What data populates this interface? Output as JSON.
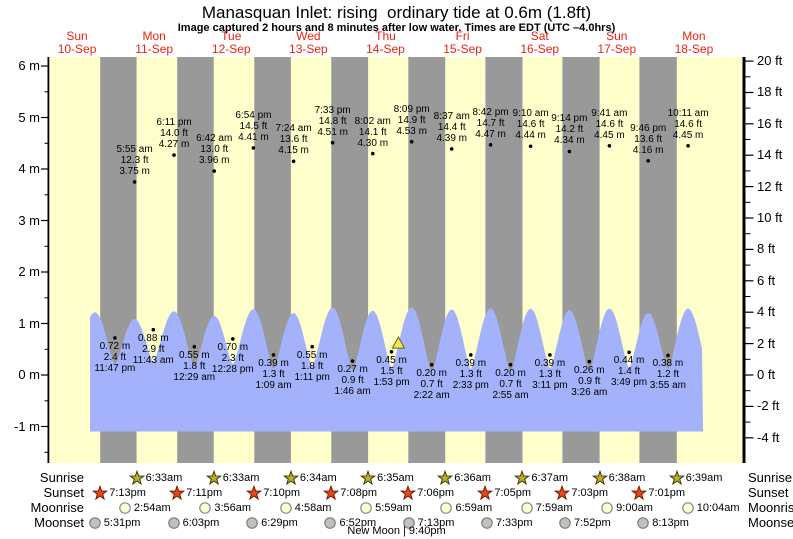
{
  "header": {
    "title": "Manasquan Inlet: rising  ordinary tide at 0.6m (1.8ft)",
    "subtitle": "Image captured 2 hours and 8 minutes after low water. Times are EDT (UTC –4.0hrs)"
  },
  "colors": {
    "day_band": "#ffffcc",
    "night_band": "#999999",
    "tide_fill": "#a3b2fb",
    "date_red": "#ee2211",
    "axis_black": "#000000",
    "sunrise_star": "#bfae2e",
    "sunrise_star_edge": "#3d3a00",
    "sunset_star": "#e2491b",
    "sunset_star_edge": "#7a1600",
    "moonrise_fill": "#ffffd2",
    "moonrise_edge": "#8a8a8a",
    "moonset_fill": "#c2c2ba",
    "moonset_edge": "#7d7d7d",
    "marker_yellow": "#ecec5a",
    "marker_edge": "#666600"
  },
  "chart_data": {
    "type": "area",
    "title": "Manasquan Inlet: rising  ordinary tide at 0.6m (1.8ft)",
    "days": [
      {
        "dow": "Sun",
        "date": "10-Sep"
      },
      {
        "dow": "Mon",
        "date": "11-Sep"
      },
      {
        "dow": "Tue",
        "date": "12-Sep"
      },
      {
        "dow": "Wed",
        "date": "13-Sep"
      },
      {
        "dow": "Thu",
        "date": "14-Sep"
      },
      {
        "dow": "Fri",
        "date": "15-Sep"
      },
      {
        "dow": "Sat",
        "date": "16-Sep"
      },
      {
        "dow": "Sun",
        "date": "17-Sep"
      },
      {
        "dow": "Mon",
        "date": "18-Sep"
      }
    ],
    "y_left_ticks": [
      {
        "label": "6 m",
        "value": 6
      },
      {
        "label": "5 m",
        "value": 5
      },
      {
        "label": "4 m",
        "value": 4
      },
      {
        "label": "3 m",
        "value": 3
      },
      {
        "label": "2 m",
        "value": 2
      },
      {
        "label": "1 m",
        "value": 1
      },
      {
        "label": "0 m",
        "value": 0
      },
      {
        "label": "-1 m",
        "value": -1
      }
    ],
    "y_right_ticks": [
      {
        "label": "20 ft",
        "value": 20
      },
      {
        "label": "18 ft",
        "value": 18
      },
      {
        "label": "16 ft",
        "value": 16
      },
      {
        "label": "14 ft",
        "value": 14
      },
      {
        "label": "12 ft",
        "value": 12
      },
      {
        "label": "10 ft",
        "value": 10
      },
      {
        "label": "8 ft",
        "value": 8
      },
      {
        "label": "6 ft",
        "value": 6
      },
      {
        "label": "4 ft",
        "value": 4
      },
      {
        "label": "2 ft",
        "value": 2
      },
      {
        "label": "0 ft",
        "value": 0
      },
      {
        "label": "-2 ft",
        "value": -2
      },
      {
        "label": "-4 ft",
        "value": -4
      }
    ],
    "high_tides": [
      {
        "day": 1,
        "time": "5:55 am",
        "ft": "12.3 ft",
        "m": "3.75 m"
      },
      {
        "day": 1,
        "time": "6:11 pm",
        "ft": "14.0 ft",
        "m": "4.27 m"
      },
      {
        "day": 2,
        "time": "6:42 am",
        "ft": "13.0 ft",
        "m": "3.96 m"
      },
      {
        "day": 2,
        "time": "6:54 pm",
        "ft": "14.5 ft",
        "m": "4.41 m"
      },
      {
        "day": 3,
        "time": "7:24 am",
        "ft": "13.6 ft",
        "m": "4.15 m"
      },
      {
        "day": 3,
        "time": "7:33 pm",
        "ft": "14.8 ft",
        "m": "4.51 m"
      },
      {
        "day": 4,
        "time": "8:02 am",
        "ft": "14.1 ft",
        "m": "4.30 m"
      },
      {
        "day": 4,
        "time": "8:09 pm",
        "ft": "14.9 ft",
        "m": "4.53 m"
      },
      {
        "day": 5,
        "time": "8:37 am",
        "ft": "14.4 ft",
        "m": "4.39 m"
      },
      {
        "day": 5,
        "time": "8:42 pm",
        "ft": "14.7 ft",
        "m": "4.47 m"
      },
      {
        "day": 6,
        "time": "9:10 am",
        "ft": "14.6 ft",
        "m": "4.44 m"
      },
      {
        "day": 6,
        "time": "9:14 pm",
        "ft": "14.2 ft",
        "m": "4.34 m"
      },
      {
        "day": 7,
        "time": "9:41 am",
        "ft": "14.6 ft",
        "m": "4.45 m"
      },
      {
        "day": 7,
        "time": "9:46 pm",
        "ft": "13.6 ft",
        "m": "4.16 m"
      },
      {
        "day": 8,
        "time": "10:11 am",
        "ft": "14.6 ft",
        "m": "4.45 m"
      }
    ],
    "low_tides": [
      {
        "day": 0,
        "time": "11:47 pm",
        "ft": "2.4 ft",
        "m": "0.72 m"
      },
      {
        "day": 1,
        "time": "11:43 am",
        "ft": "2.9 ft",
        "m": "0.88 m"
      },
      {
        "day": 2,
        "time": "12:29 am",
        "ft": "1.8 ft",
        "m": "0.55 m"
      },
      {
        "day": 2,
        "time": "12:28 pm",
        "ft": "2.3 ft",
        "m": "0.70 m"
      },
      {
        "day": 3,
        "time": "1:09 am",
        "ft": "1.3 ft",
        "m": "0.39 m"
      },
      {
        "day": 3,
        "time": "1:11 pm",
        "ft": "1.8 ft",
        "m": "0.55 m"
      },
      {
        "day": 4,
        "time": "1:46 am",
        "ft": "0.9 ft",
        "m": "0.27 m"
      },
      {
        "day": 4,
        "time": "1:53 pm",
        "ft": "1.5 ft",
        "m": "0.45 m"
      },
      {
        "day": 5,
        "time": "2:22 am",
        "ft": "0.7 ft",
        "m": "0.20 m"
      },
      {
        "day": 5,
        "time": "2:33 pm",
        "ft": "1.3 ft",
        "m": "0.39 m"
      },
      {
        "day": 6,
        "time": "2:55 am",
        "ft": "0.7 ft",
        "m": "0.20 m"
      },
      {
        "day": 6,
        "time": "3:11 pm",
        "ft": "1.3 ft",
        "m": "0.39 m"
      },
      {
        "day": 7,
        "time": "3:26 am",
        "ft": "0.9 ft",
        "m": "0.26 m"
      },
      {
        "day": 7,
        "time": "3:49 pm",
        "ft": "1.4 ft",
        "m": "0.44 m"
      },
      {
        "day": 8,
        "time": "3:55 am",
        "ft": "1.2 ft",
        "m": "0.38 m"
      }
    ],
    "current_marker": {
      "day": 4,
      "time": "4:01 pm",
      "height_m": 0.6
    }
  },
  "sun_moon": {
    "rows": [
      {
        "id": "sunrise",
        "label": "Sunrise",
        "icon": "sunrise-star",
        "entries": [
          {
            "day": 1,
            "time": "6:33am"
          },
          {
            "day": 2,
            "time": "6:33am"
          },
          {
            "day": 3,
            "time": "6:34am"
          },
          {
            "day": 4,
            "time": "6:35am"
          },
          {
            "day": 5,
            "time": "6:36am"
          },
          {
            "day": 6,
            "time": "6:37am"
          },
          {
            "day": 7,
            "time": "6:38am"
          },
          {
            "day": 8,
            "time": "6:39am"
          }
        ]
      },
      {
        "id": "sunset",
        "label": "Sunset",
        "icon": "sunset-star",
        "entries": [
          {
            "day": 0,
            "time": "7:13pm"
          },
          {
            "day": 1,
            "time": "7:11pm"
          },
          {
            "day": 2,
            "time": "7:10pm"
          },
          {
            "day": 3,
            "time": "7:08pm"
          },
          {
            "day": 4,
            "time": "7:06pm"
          },
          {
            "day": 5,
            "time": "7:05pm"
          },
          {
            "day": 6,
            "time": "7:03pm"
          },
          {
            "day": 7,
            "time": "7:01pm"
          }
        ]
      },
      {
        "id": "moonrise",
        "label": "Moonrise",
        "icon": "moonrise-circle",
        "entries": [
          {
            "day": 1,
            "time": "2:54am"
          },
          {
            "day": 2,
            "time": "3:56am"
          },
          {
            "day": 3,
            "time": "4:58am"
          },
          {
            "day": 4,
            "time": "5:59am"
          },
          {
            "day": 5,
            "time": "6:59am"
          },
          {
            "day": 6,
            "time": "7:59am"
          },
          {
            "day": 7,
            "time": "9:00am"
          },
          {
            "day": 8,
            "time": "10:04am"
          }
        ]
      },
      {
        "id": "moonset",
        "label": "Moonset",
        "icon": "moonset-circle",
        "entries": [
          {
            "day": 0,
            "time": "5:31pm"
          },
          {
            "day": 1,
            "time": "6:03pm"
          },
          {
            "day": 2,
            "time": "6:29pm"
          },
          {
            "day": 3,
            "time": "6:52pm"
          },
          {
            "day": 4,
            "time": "7:13pm"
          },
          {
            "day": 5,
            "time": "7:33pm"
          },
          {
            "day": 6,
            "time": "7:52pm"
          },
          {
            "day": 7,
            "time": "8:13pm"
          }
        ]
      }
    ],
    "footer": "New Moon | 9:40pm"
  }
}
